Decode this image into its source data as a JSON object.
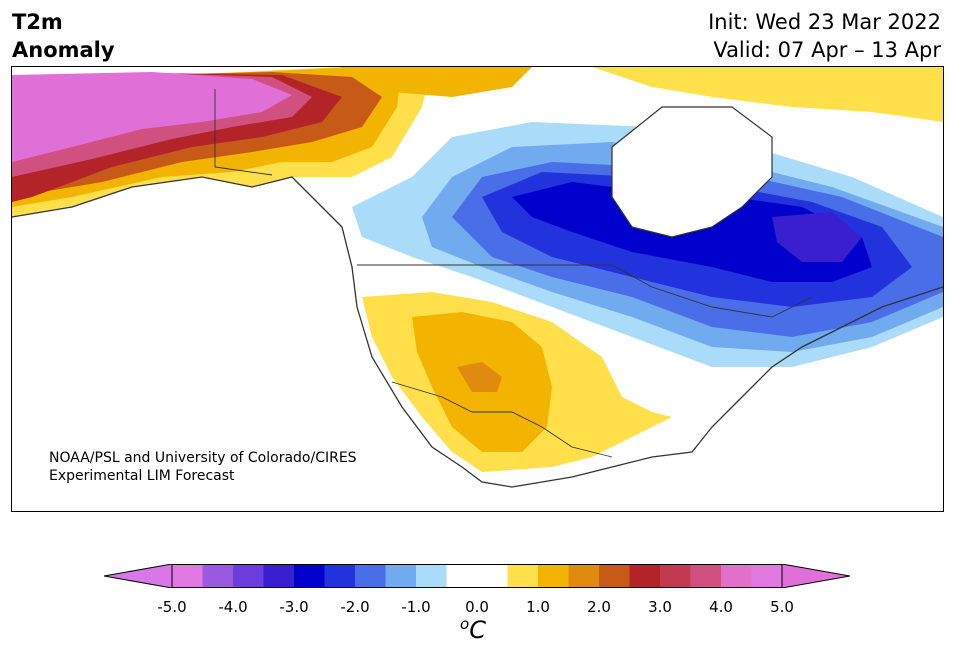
{
  "title": {
    "line1": "T2m",
    "line2": "Anomaly"
  },
  "dates": {
    "init": "Init: Wed 23 Mar 2022",
    "valid": "Valid: 07 Apr – 13 Apr"
  },
  "credit": {
    "line1": "NOAA/PSL and University of Colorado/CIRES",
    "line2": "Experimental LIM Forecast"
  },
  "colorbar": {
    "unit": "C",
    "unit_superscript": "o",
    "ticks": [
      "-5.0",
      "-4.0",
      "-3.0",
      "-2.0",
      "-1.0",
      "0.0",
      "1.0",
      "2.0",
      "3.0",
      "4.0",
      "5.0"
    ],
    "colors": [
      "#e07ae0",
      "#9b59e0",
      "#6a3ddc",
      "#3a1fd0",
      "#0000cc",
      "#2233dd",
      "#4a6ee8",
      "#72aaf0",
      "#aadcfa",
      "#ffffff",
      "#ffffff",
      "#ffe04a",
      "#f2b400",
      "#e08a10",
      "#c85a18",
      "#b32428",
      "#c23a52",
      "#d05080",
      "#e070c8",
      "#e07ae0"
    ],
    "under_color": "#d878e8",
    "over_color": "#e070d8"
  },
  "anomaly_colors": {
    "pink_high": "#e070d8",
    "magenta": "#d05080",
    "dark_red": "#b32428",
    "red_orange": "#c85a18",
    "orange": "#e08a10",
    "gold": "#f2b400",
    "yellow": "#ffe04a",
    "light_blue": "#aadcfa",
    "mid_blue": "#72aaf0",
    "blue": "#4a6ee8",
    "deep_blue": "#2233dd",
    "navy": "#0000cc",
    "indigo": "#3a1fd0"
  }
}
